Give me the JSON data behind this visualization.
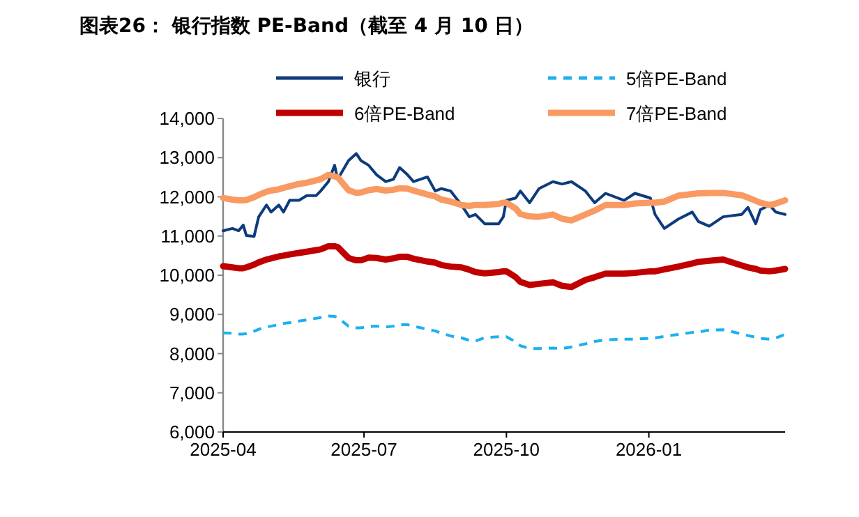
{
  "chart_data": {
    "type": "line",
    "title": "图表26： 银行指数 PE-Band（截至 4 月 10 日）",
    "x": [
      "2025-04-01",
      "2025-04-07",
      "2025-04-11",
      "2025-04-14",
      "2025-04-16",
      "2025-04-21",
      "2025-04-24",
      "2025-04-29",
      "2025-05-02",
      "2025-05-07",
      "2025-05-10",
      "2025-05-14",
      "2025-05-20",
      "2025-05-25",
      "2025-05-31",
      "2025-06-03",
      "2025-06-08",
      "2025-06-12",
      "2025-06-14",
      "2025-06-21",
      "2025-06-26",
      "2025-06-29",
      "2025-07-04",
      "2025-07-09",
      "2025-07-15",
      "2025-07-20",
      "2025-07-24",
      "2025-07-29",
      "2025-08-02",
      "2025-08-11",
      "2025-08-16",
      "2025-08-20",
      "2025-08-26",
      "2025-09-02",
      "2025-09-07",
      "2025-09-11",
      "2025-09-17",
      "2025-09-26",
      "2025-09-29",
      "2025-10-01",
      "2025-10-07",
      "2025-10-10",
      "2025-10-16",
      "2025-10-22",
      "2025-10-31",
      "2025-11-06",
      "2025-11-12",
      "2025-11-21",
      "2025-11-27",
      "2025-12-04",
      "2025-12-16",
      "2025-12-23",
      "2026-01-02",
      "2026-01-05",
      "2026-01-11",
      "2026-01-20",
      "2026-01-29",
      "2026-02-02",
      "2026-02-09",
      "2026-02-18",
      "2026-03-02",
      "2026-03-06",
      "2026-03-11",
      "2026-03-14",
      "2026-03-20",
      "2026-03-24",
      "2026-03-30"
    ],
    "series": [
      {
        "name": "银行",
        "color": "#0e3b7d",
        "values": [
          11134,
          11194,
          11134,
          11278,
          11015,
          10991,
          11493,
          11791,
          11612,
          11791,
          11612,
          11910,
          11910,
          12030,
          12030,
          12149,
          12388,
          12806,
          12448,
          12925,
          13104,
          12925,
          12806,
          12567,
          12388,
          12448,
          12746,
          12567,
          12388,
          12508,
          12149,
          12209,
          12148,
          11790,
          11491,
          11550,
          11312,
          11312,
          11491,
          11910,
          11969,
          12148,
          11850,
          12208,
          12387,
          12327,
          12387,
          12148,
          11850,
          12089,
          11910,
          12089,
          11969,
          11551,
          11192,
          11431,
          11611,
          11372,
          11252,
          11491,
          11551,
          11730,
          11312,
          11670,
          11790,
          11611,
          11551
        ]
      },
      {
        "name": "5倍PE-Band",
        "color": "#1cb0ee",
        "line_style": "dashed",
        "values": [
          8530,
          8520,
          8500,
          8500,
          8510,
          8570,
          8620,
          8680,
          8700,
          8740,
          8770,
          8790,
          8830,
          8860,
          8900,
          8920,
          8960,
          8950,
          8920,
          8700,
          8660,
          8660,
          8690,
          8700,
          8680,
          8700,
          8740,
          8740,
          8700,
          8620,
          8580,
          8520,
          8450,
          8400,
          8340,
          8320,
          8410,
          8430,
          8430,
          8430,
          8300,
          8200,
          8130,
          8130,
          8140,
          8130,
          8170,
          8250,
          8310,
          8350,
          8370,
          8370,
          8390,
          8400,
          8440,
          8490,
          8540,
          8550,
          8600,
          8610,
          8500,
          8460,
          8420,
          8390,
          8370,
          8400,
          8490
        ]
      },
      {
        "name": "6倍PE-Band",
        "color": "#c00000",
        "values": [
          10230,
          10200,
          10180,
          10180,
          10200,
          10270,
          10330,
          10400,
          10430,
          10480,
          10500,
          10530,
          10570,
          10600,
          10640,
          10660,
          10740,
          10740,
          10720,
          10440,
          10380,
          10380,
          10450,
          10440,
          10400,
          10430,
          10470,
          10470,
          10420,
          10350,
          10320,
          10260,
          10220,
          10200,
          10140,
          10080,
          10050,
          10080,
          10100,
          10100,
          9950,
          9830,
          9750,
          9780,
          9820,
          9730,
          9700,
          9880,
          9950,
          10040,
          10040,
          10060,
          10100,
          10100,
          10150,
          10220,
          10300,
          10340,
          10370,
          10400,
          10250,
          10200,
          10160,
          10120,
          10100,
          10120,
          10160
        ]
      },
      {
        "name": "7倍PE-Band",
        "color": "#f99a63",
        "values": [
          11970,
          11930,
          11910,
          11910,
          11920,
          11990,
          12050,
          12130,
          12160,
          12190,
          12230,
          12270,
          12330,
          12360,
          12420,
          12450,
          12560,
          12520,
          12500,
          12170,
          12100,
          12110,
          12170,
          12200,
          12160,
          12180,
          12220,
          12210,
          12160,
          12060,
          12010,
          11930,
          11880,
          11790,
          11770,
          11790,
          11790,
          11820,
          11850,
          11850,
          11700,
          11560,
          11500,
          11490,
          11550,
          11440,
          11400,
          11550,
          11650,
          11790,
          11790,
          11830,
          11850,
          11850,
          11880,
          12030,
          12070,
          12090,
          12100,
          12100,
          12040,
          11980,
          11900,
          11850,
          11790,
          11830,
          11910
        ]
      }
    ],
    "xlim": [
      "2025-04-01",
      "2026-03-30"
    ],
    "xticks": [
      {
        "value": "2025-04-01",
        "label": "2025-04"
      },
      {
        "value": "2025-07-01",
        "label": "2025-07"
      },
      {
        "value": "2025-10-01",
        "label": "2025-10"
      },
      {
        "value": "2026-01-01",
        "label": "2026-01"
      }
    ],
    "ylim": [
      6000,
      14000
    ],
    "yticks": [
      {
        "value": 6000,
        "label": "6,000"
      },
      {
        "value": 7000,
        "label": "7,000"
      },
      {
        "value": 8000,
        "label": "8,000"
      },
      {
        "value": 9000,
        "label": "9,000"
      },
      {
        "value": 10000,
        "label": "10,000"
      },
      {
        "value": 11000,
        "label": "11,000"
      },
      {
        "value": 12000,
        "label": "12,000"
      },
      {
        "value": 13000,
        "label": "13,000"
      },
      {
        "value": 14000,
        "label": "14,000"
      }
    ],
    "legend": "top",
    "grid": false,
    "marker": "none"
  }
}
